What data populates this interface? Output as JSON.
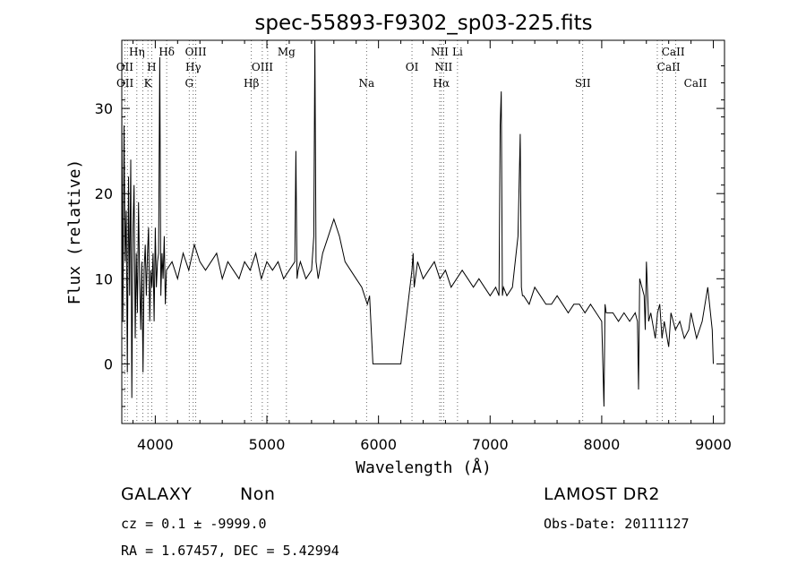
{
  "chart_data": {
    "type": "line",
    "title": "spec-55893-F9302_sp03-225.fits",
    "xlabel": "Wavelength (Å)",
    "ylabel": "Flux (relative)",
    "xlim": [
      3700,
      9100
    ],
    "ylim": [
      -7,
      38
    ],
    "x_ticks": [
      4000,
      5000,
      6000,
      7000,
      8000,
      9000
    ],
    "y_ticks": [
      0,
      10,
      20,
      30
    ],
    "grid": false,
    "spectrum": {
      "x": [
        3700,
        3710,
        3720,
        3730,
        3740,
        3750,
        3760,
        3770,
        3780,
        3790,
        3800,
        3810,
        3820,
        3830,
        3840,
        3850,
        3860,
        3870,
        3880,
        3890,
        3900,
        3910,
        3920,
        3930,
        3940,
        3950,
        3960,
        3970,
        3980,
        3990,
        4000,
        4010,
        4020,
        4030,
        4040,
        4050,
        4060,
        4070,
        4080,
        4090,
        4100,
        4150,
        4200,
        4250,
        4300,
        4350,
        4400,
        4450,
        4500,
        4550,
        4600,
        4650,
        4700,
        4750,
        4800,
        4850,
        4900,
        4950,
        5000,
        5050,
        5100,
        5150,
        5200,
        5250,
        5260,
        5270,
        5280,
        5300,
        5350,
        5400,
        5420,
        5430,
        5440,
        5460,
        5500,
        5550,
        5600,
        5650,
        5700,
        5750,
        5800,
        5850,
        5900,
        5920,
        5950,
        5980,
        6000,
        6100,
        6200,
        6300,
        6310,
        6320,
        6350,
        6400,
        6450,
        6500,
        6550,
        6600,
        6650,
        6700,
        6750,
        6800,
        6850,
        6900,
        6950,
        7000,
        7050,
        7080,
        7090,
        7100,
        7110,
        7120,
        7150,
        7200,
        7250,
        7270,
        7280,
        7290,
        7300,
        7350,
        7400,
        7450,
        7500,
        7550,
        7600,
        7650,
        7700,
        7750,
        7800,
        7850,
        7900,
        7950,
        8000,
        8020,
        8030,
        8040,
        8100,
        8150,
        8200,
        8250,
        8300,
        8320,
        8330,
        8340,
        8380,
        8390,
        8400,
        8420,
        8440,
        8480,
        8500,
        8520,
        8540,
        8560,
        8600,
        8620,
        8660,
        8700,
        8740,
        8780,
        8800,
        8850,
        8900,
        8950,
        8990,
        9000
      ],
      "y": [
        30,
        5,
        28,
        12,
        18,
        -1,
        22,
        8,
        24,
        -4,
        16,
        21,
        3,
        13,
        6,
        19,
        10,
        4,
        12,
        -1,
        11,
        14,
        8,
        13,
        16,
        5,
        11,
        9,
        13,
        5,
        16,
        9,
        12,
        13,
        36,
        8,
        13,
        10,
        15,
        7,
        11,
        12,
        10,
        13,
        11,
        14,
        12,
        11,
        12,
        13,
        10,
        12,
        11,
        10,
        12,
        11,
        13,
        10,
        12,
        11,
        12,
        10,
        11,
        12,
        25,
        10,
        11,
        12,
        10,
        11,
        15,
        38,
        12,
        10,
        13,
        15,
        17,
        15,
        12,
        11,
        10,
        9,
        7,
        8,
        0,
        0,
        0,
        0,
        0,
        11,
        13,
        9,
        12,
        10,
        11,
        12,
        10,
        11,
        9,
        10,
        11,
        10,
        9,
        10,
        9,
        8,
        9,
        8,
        28,
        32,
        8,
        9,
        8,
        9,
        15,
        27,
        9,
        8,
        8,
        7,
        9,
        8,
        7,
        7,
        8,
        7,
        6,
        7,
        7,
        6,
        7,
        6,
        5,
        -5,
        7,
        6,
        6,
        5,
        6,
        5,
        6,
        5,
        -3,
        10,
        8,
        4,
        12,
        5,
        6,
        3,
        6,
        7,
        3,
        5,
        2,
        6,
        4,
        5,
        3,
        4,
        6,
        3,
        5,
        9,
        4,
        0
      ]
    },
    "line_markers": [
      {
        "label": "OII",
        "x": 3727,
        "row": 3
      },
      {
        "label": "OII",
        "x": 3729,
        "row": 4
      },
      {
        "label": "Hη",
        "x": 3835,
        "row": 1
      },
      {
        "label": "H",
        "x": 3968,
        "row": 3
      },
      {
        "label": "K",
        "x": 3934,
        "row": 4
      },
      {
        "label": "Hδ",
        "x": 4102,
        "row": 1
      },
      {
        "label": "OIII",
        "x": 4363,
        "row": 1
      },
      {
        "label": "Hγ",
        "x": 4340,
        "row": 3
      },
      {
        "label": "G",
        "x": 4304,
        "row": 4
      },
      {
        "label": "Mg",
        "x": 5175,
        "row": 1
      },
      {
        "label": "OIII",
        "x": 4959,
        "row": 3
      },
      {
        "label": "Hβ",
        "x": 4861,
        "row": 4
      },
      {
        "label": "Na",
        "x": 5893,
        "row": 4
      },
      {
        "label": "NII",
        "x": 6548,
        "row": 1
      },
      {
        "label": "Li",
        "x": 6708,
        "row": 1
      },
      {
        "label": "OI",
        "x": 6300,
        "row": 3
      },
      {
        "label": "NII",
        "x": 6583,
        "row": 3
      },
      {
        "label": "Hα",
        "x": 6563,
        "row": 4
      },
      {
        "label": "SII",
        "x": 6717,
        "row": 4,
        "display_x": 7830
      },
      {
        "label": "CaII",
        "x": 8498,
        "row": 1,
        "display_x": 8640
      },
      {
        "label": "CaII",
        "x": 8542,
        "row": 3,
        "display_x": 8600
      },
      {
        "label": "CaII",
        "x": 8662,
        "row": 4,
        "display_x": 8840
      }
    ],
    "marker_lines_x": [
      3727,
      3750,
      3835,
      3889,
      3934,
      3968,
      4102,
      4304,
      4340,
      4363,
      4861,
      4959,
      5007,
      5175,
      5893,
      6300,
      6548,
      6563,
      6583,
      6708,
      7830,
      8498,
      8542,
      8662
    ]
  },
  "info": {
    "object_class": "GALAXY",
    "subclass": "Non",
    "cz_line": "cz = 0.1  ±  -9999.0",
    "coords_line": "RA =   1.67457, DEC =   5.42994",
    "survey": "LAMOST DR2",
    "obs_date_line": "Obs-Date: 20111127"
  }
}
